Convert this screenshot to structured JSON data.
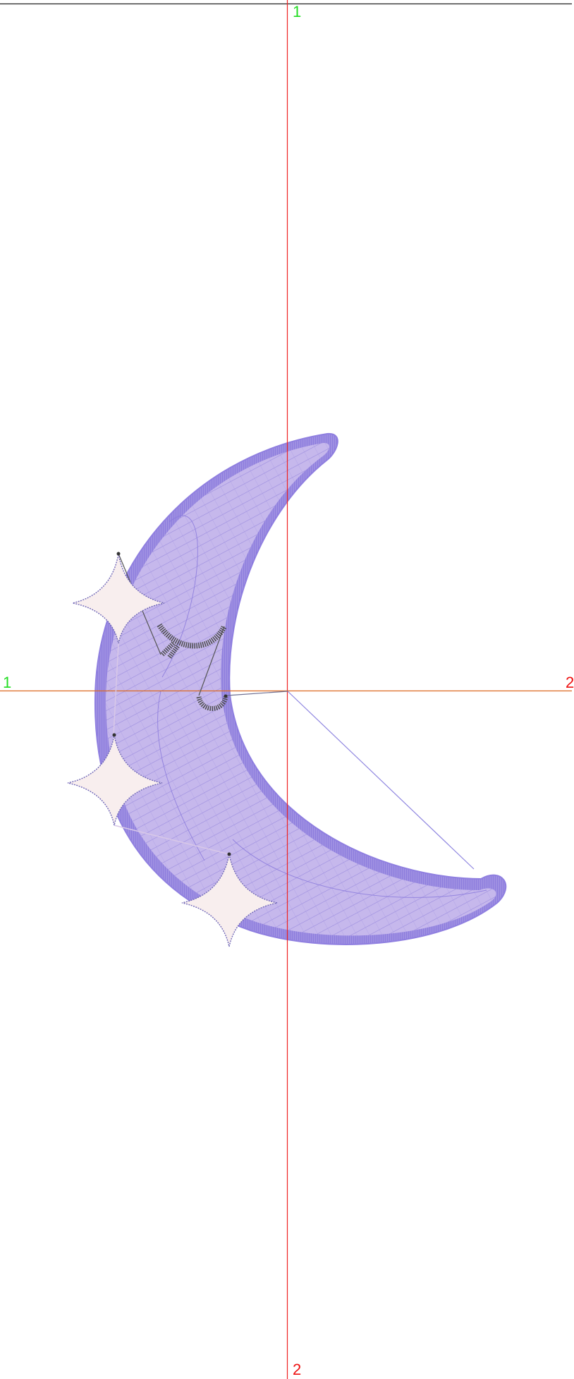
{
  "guides": {
    "vertical": {
      "top_label": "1",
      "bottom_label": "2"
    },
    "horizontal": {
      "left_label": "1",
      "right_label": "2"
    }
  },
  "colors": {
    "background": "#ffffff",
    "frame_line": "#222222",
    "vertical_guide": "#ee2222",
    "horizontal_guide": "#dd6a22",
    "start_label": "#22dd22",
    "end_label": "#ee1111",
    "moon_fill": "#c6b8ec",
    "moon_border": "#8f7fe0",
    "moon_stitch": "#8878dc",
    "star_fill": "#f8eeee",
    "star_outline": "#7068b8",
    "eye_stitch": "#4d4d4d"
  },
  "design": {
    "objects": [
      {
        "name": "moon",
        "icon": "crescent-moon"
      },
      {
        "name": "star",
        "icon": "four-point-star"
      },
      {
        "name": "star",
        "icon": "four-point-star"
      },
      {
        "name": "star",
        "icon": "four-point-star"
      },
      {
        "name": "sleeping-eye",
        "icon": "closed-eye"
      },
      {
        "name": "smile",
        "icon": "smile-arc"
      }
    ]
  }
}
